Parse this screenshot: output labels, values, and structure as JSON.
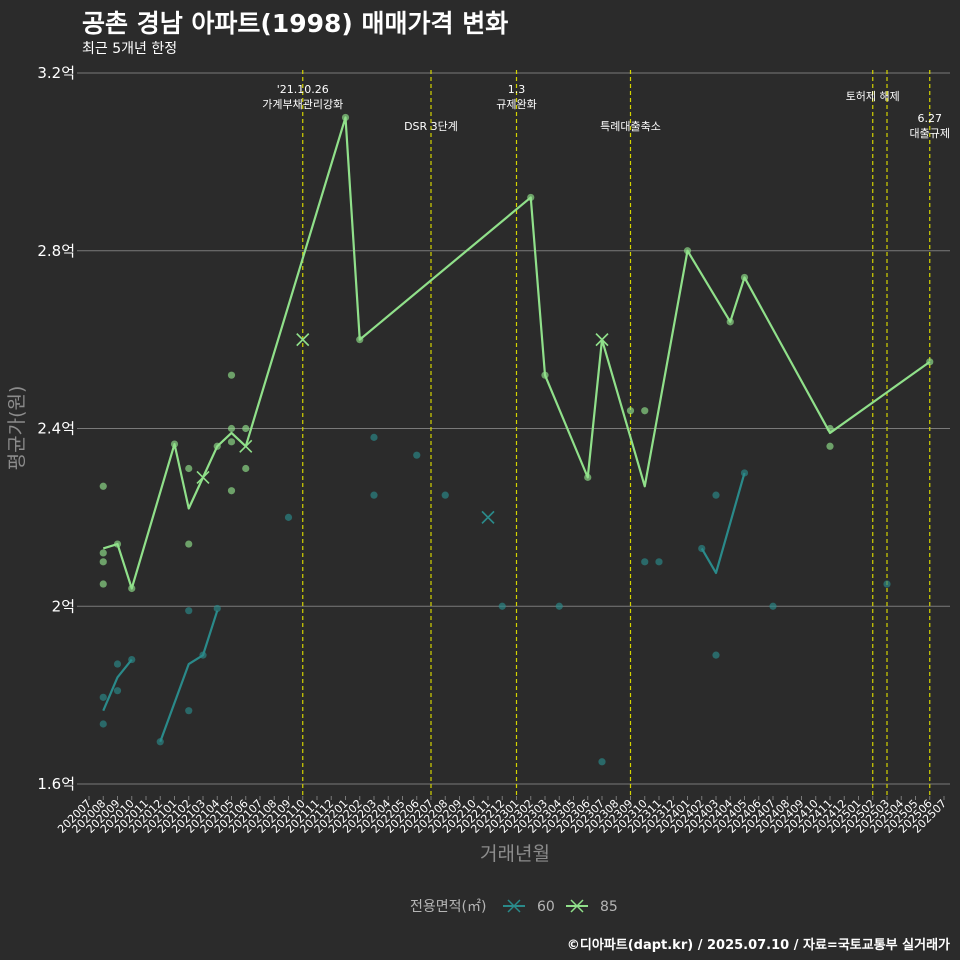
{
  "chart_data": {
    "type": "line",
    "title": "공촌 경남 아파트(1998) 매매가격 변화",
    "subtitle": "최근 5개년 한정",
    "xlabel": "거래년월",
    "ylabel": "평균가(원)",
    "legend_title": "전용면적(㎡)",
    "caption": "©디아파트(dapt.kr) / 2025.07.10 / 자료=국토교통부 실거래가",
    "ylim": [
      1.6,
      3.2
    ],
    "yticks": [
      {
        "value": 1.6,
        "label": "1.6억"
      },
      {
        "value": 2.0,
        "label": "2억"
      },
      {
        "value": 2.4,
        "label": "2.4억"
      },
      {
        "value": 2.8,
        "label": "2.8억"
      },
      {
        "value": 3.2,
        "label": "3.2억"
      }
    ],
    "categories": [
      "202007",
      "202008",
      "202009",
      "202010",
      "202011",
      "202012",
      "202101",
      "202102",
      "202103",
      "202104",
      "202105",
      "202106",
      "202107",
      "202108",
      "202109",
      "202110",
      "202111",
      "202112",
      "202201",
      "202202",
      "202203",
      "202204",
      "202205",
      "202206",
      "202207",
      "202208",
      "202209",
      "202210",
      "202211",
      "202212",
      "202301",
      "202302",
      "202303",
      "202304",
      "202305",
      "202306",
      "202307",
      "202308",
      "202309",
      "202310",
      "202311",
      "202312",
      "202401",
      "202402",
      "202403",
      "202404",
      "202405",
      "202406",
      "202407",
      "202408",
      "202409",
      "202410",
      "202411",
      "202412",
      "202501",
      "202502",
      "202503",
      "202504",
      "202505",
      "202506",
      "202507"
    ],
    "series": [
      {
        "name": "60",
        "color": "#2a8a8a",
        "line": [
          {
            "x": "202008",
            "y": 1.765
          },
          {
            "x": "202009",
            "y": 1.84
          },
          {
            "x": "202010",
            "y": 1.88
          },
          {
            "x": null
          },
          {
            "x": "202012",
            "y": 1.695
          },
          {
            "x": "202102",
            "y": 1.87
          },
          {
            "x": "202103",
            "y": 1.89
          },
          {
            "x": "202104",
            "y": 1.99
          },
          {
            "x": null
          },
          {
            "x": "202402",
            "y": 2.13
          },
          {
            "x": "202403",
            "y": 2.075
          },
          {
            "x": "202405",
            "y": 2.3
          }
        ],
        "points": [
          {
            "x": "202008",
            "y": 1.735
          },
          {
            "x": "202008",
            "y": 1.795
          },
          {
            "x": "202009",
            "y": 1.81
          },
          {
            "x": "202009",
            "y": 1.87
          },
          {
            "x": "202010",
            "y": 1.88
          },
          {
            "x": "202012",
            "y": 1.695
          },
          {
            "x": "202102",
            "y": 1.99
          },
          {
            "x": "202102",
            "y": 1.765
          },
          {
            "x": "202103",
            "y": 1.89
          },
          {
            "x": "202104",
            "y": 1.995
          },
          {
            "x": "202109",
            "y": 2.2
          },
          {
            "x": "202203",
            "y": 2.38
          },
          {
            "x": "202203",
            "y": 2.25
          },
          {
            "x": "202206",
            "y": 2.34
          },
          {
            "x": "202208",
            "y": 2.25
          },
          {
            "x": "202212",
            "y": 2.0
          },
          {
            "x": "202304",
            "y": 2.0
          },
          {
            "x": "202307",
            "y": 1.65
          },
          {
            "x": "202310",
            "y": 2.1
          },
          {
            "x": "202311",
            "y": 2.1
          },
          {
            "x": "202402",
            "y": 2.13
          },
          {
            "x": "202403",
            "y": 2.25
          },
          {
            "x": "202403",
            "y": 1.89
          },
          {
            "x": "202405",
            "y": 2.3
          },
          {
            "x": "202407",
            "y": 2.0
          },
          {
            "x": "202503",
            "y": 2.05
          }
        ],
        "crosses": [
          {
            "x": "202211",
            "y": 2.2
          }
        ]
      },
      {
        "name": "85",
        "color": "#90e08a",
        "line": [
          {
            "x": "202008",
            "y": 2.13
          },
          {
            "x": "202009",
            "y": 2.14
          },
          {
            "x": "202010",
            "y": 2.04
          },
          {
            "x": "202101",
            "y": 2.365
          },
          {
            "x": "202102",
            "y": 2.22
          },
          {
            "x": "202103",
            "y": 2.29
          },
          {
            "x": "202104",
            "y": 2.36
          },
          {
            "x": "202105",
            "y": 2.39
          },
          {
            "x": "202106",
            "y": 2.36
          },
          {
            "x": "202201",
            "y": 3.1
          },
          {
            "x": "202202",
            "y": 2.6
          },
          {
            "x": "202302",
            "y": 2.92
          },
          {
            "x": "202303",
            "y": 2.52
          },
          {
            "x": "202306",
            "y": 2.29
          },
          {
            "x": "202307",
            "y": 2.6
          },
          {
            "x": "202310",
            "y": 2.27
          },
          {
            "x": "202401",
            "y": 2.8
          },
          {
            "x": "202404",
            "y": 2.64
          },
          {
            "x": "202405",
            "y": 2.74
          },
          {
            "x": "202411",
            "y": 2.39
          },
          {
            "x": "202506",
            "y": 2.55
          }
        ],
        "points": [
          {
            "x": "202008",
            "y": 2.27
          },
          {
            "x": "202008",
            "y": 2.12
          },
          {
            "x": "202008",
            "y": 2.1
          },
          {
            "x": "202008",
            "y": 2.05
          },
          {
            "x": "202009",
            "y": 2.14
          },
          {
            "x": "202010",
            "y": 2.04
          },
          {
            "x": "202101",
            "y": 2.365
          },
          {
            "x": "202102",
            "y": 2.31
          },
          {
            "x": "202102",
            "y": 2.14
          },
          {
            "x": "202104",
            "y": 2.36
          },
          {
            "x": "202105",
            "y": 2.52
          },
          {
            "x": "202105",
            "y": 2.4
          },
          {
            "x": "202105",
            "y": 2.37
          },
          {
            "x": "202105",
            "y": 2.26
          },
          {
            "x": "202106",
            "y": 2.4
          },
          {
            "x": "202106",
            "y": 2.31
          },
          {
            "x": "202201",
            "y": 3.1
          },
          {
            "x": "202202",
            "y": 2.6
          },
          {
            "x": "202302",
            "y": 2.92
          },
          {
            "x": "202303",
            "y": 2.52
          },
          {
            "x": "202306",
            "y": 2.29
          },
          {
            "x": "202309",
            "y": 2.44
          },
          {
            "x": "202310",
            "y": 2.44
          },
          {
            "x": "202401",
            "y": 2.8
          },
          {
            "x": "202404",
            "y": 2.64
          },
          {
            "x": "202405",
            "y": 2.74
          },
          {
            "x": "202411",
            "y": 2.4
          },
          {
            "x": "202411",
            "y": 2.36
          },
          {
            "x": "202506",
            "y": 2.55
          }
        ],
        "crosses": [
          {
            "x": "202103",
            "y": 2.29
          },
          {
            "x": "202106",
            "y": 2.36
          },
          {
            "x": "202110",
            "y": 2.6
          },
          {
            "x": "202307",
            "y": 2.6
          }
        ]
      }
    ],
    "events": [
      {
        "x": "202110",
        "lines": [
          "'21.10.26",
          "가계부채관리강화"
        ],
        "row": 0
      },
      {
        "x": "202207",
        "lines": [
          "DSR 3단계"
        ],
        "row": 2
      },
      {
        "x": "202301",
        "lines": [
          "1.3",
          "규제완화"
        ],
        "row": 0
      },
      {
        "x": "202309",
        "lines": [
          "특례대출축소"
        ],
        "row": 2
      },
      {
        "x": "202502",
        "lines": [
          "토허제 해제"
        ],
        "row": 1
      },
      {
        "x": "202503",
        "lines": [],
        "row": 1
      },
      {
        "x": "202506",
        "lines": [
          "6.27",
          "대출규제"
        ],
        "row": 3
      }
    ],
    "event_color": "#d4d400",
    "grid_color": "#7a7a7a"
  }
}
